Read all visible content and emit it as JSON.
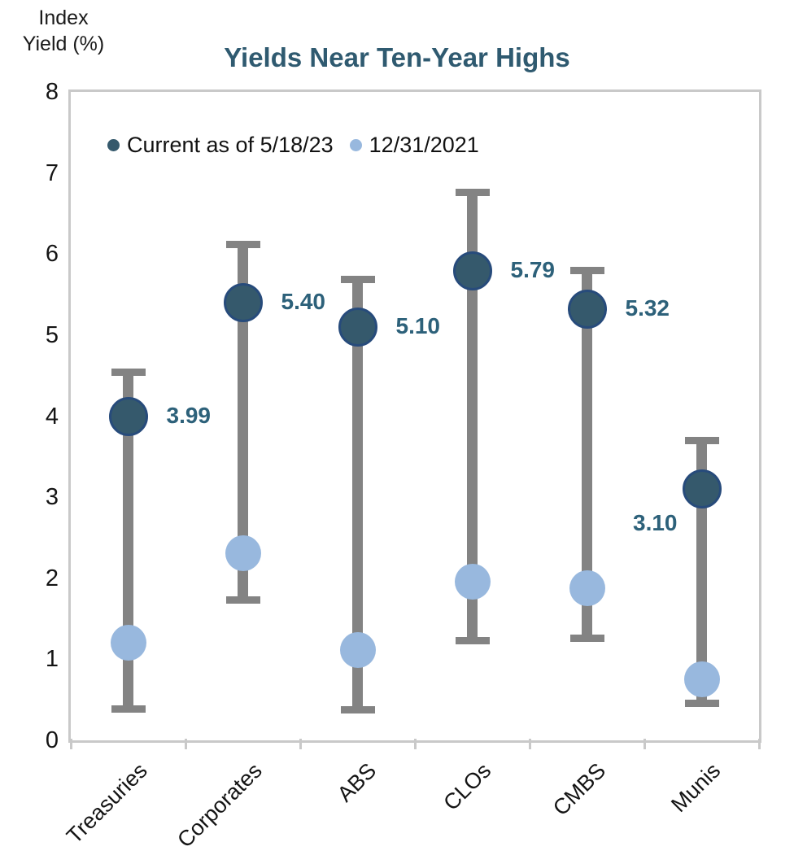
{
  "chart_data": {
    "type": "scatter",
    "subtype": "dot-plot-with-high-low-range-bars",
    "title": "Yields Near Ten-Year Highs",
    "y_axis_title": "Index Yield (%)",
    "axis_title_lines": [
      "Index",
      "Yield (%)"
    ],
    "categories": [
      "Treasuries",
      "Corporates",
      "ABS",
      "CLOs",
      "CMBS",
      "Munis"
    ],
    "series": [
      {
        "name": "Current as of 5/18/23",
        "values": [
          3.99,
          5.4,
          5.1,
          5.79,
          5.32,
          3.1
        ],
        "data_labels": [
          "3.99",
          "5.40",
          "5.10",
          "5.79",
          "5.32",
          "3.10"
        ],
        "label_side": [
          "right",
          "right",
          "right",
          "right",
          "right",
          "left"
        ],
        "marker_color": "#35596c",
        "marker_border_color": "#274b7b"
      },
      {
        "name": "12/31/2021",
        "values": [
          1.2,
          2.31,
          1.11,
          1.96,
          1.88,
          0.75
        ],
        "marker_color": "#98b8de"
      }
    ],
    "ranges": {
      "high": [
        4.55,
        6.12,
        5.69,
        6.77,
        5.8,
        3.7
      ],
      "low": [
        0.38,
        1.73,
        0.37,
        1.22,
        1.25,
        0.45
      ],
      "bar_color": "#838383"
    },
    "ylim": [
      0,
      8
    ],
    "yticks": [
      "8",
      "7",
      "6",
      "5",
      "4",
      "3",
      "2",
      "1",
      "0"
    ],
    "grid": false,
    "legend_position": "top-left-inside",
    "colors": {
      "title": "#2f5a70",
      "data_label": "#2d617a",
      "plot_border": "#c9c9c9",
      "axis_tick": "#c9c9c9",
      "text": "#141414"
    }
  }
}
